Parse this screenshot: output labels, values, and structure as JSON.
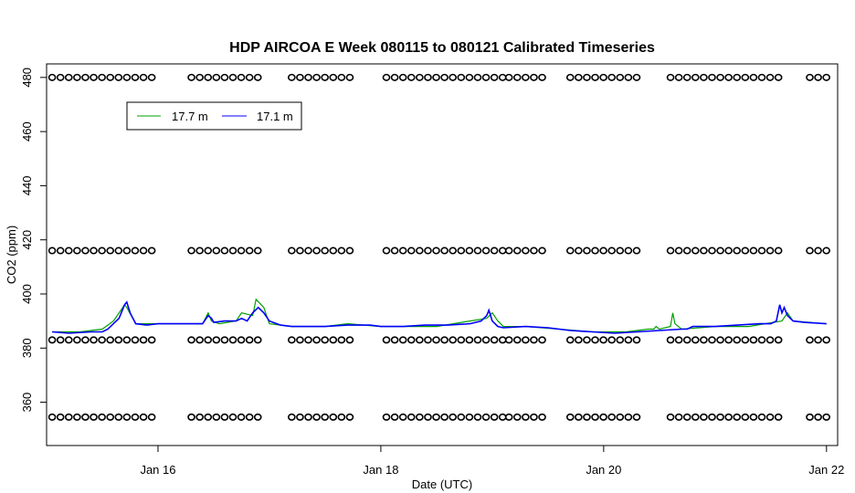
{
  "chart_data": {
    "type": "line",
    "title": "HDP AIRCOA E  Week 080115 to 080121  Calibrated Timeseries",
    "xlabel": "Date (UTC)",
    "ylabel": "CO2 (ppm)",
    "xlim": [
      15.0,
      22.1
    ],
    "ylim": [
      344.0,
      485.0
    ],
    "x_ticks": [
      {
        "value": 16,
        "label": "Jan 16"
      },
      {
        "value": 18,
        "label": "Jan 18"
      },
      {
        "value": 20,
        "label": "Jan 20"
      },
      {
        "value": 22,
        "label": "Jan 22"
      }
    ],
    "y_ticks": [
      360,
      380,
      400,
      420,
      440,
      460,
      480
    ],
    "grid": false,
    "legend": {
      "placement": "top-left",
      "entries": [
        {
          "label": "17.7 m",
          "color": "#00a000"
        },
        {
          "label": "17.1 m",
          "color": "#0000ff"
        }
      ]
    },
    "series": [
      {
        "name": "17.7 m",
        "color": "#00a000",
        "x": [
          15.05,
          15.3,
          15.5,
          15.6,
          15.7,
          15.72,
          15.8,
          16.0,
          16.3,
          16.4,
          16.45,
          16.48,
          16.55,
          16.7,
          16.75,
          16.85,
          16.88,
          16.95,
          17.0,
          17.2,
          17.5,
          17.7,
          18.0,
          18.5,
          18.8,
          18.95,
          19.0,
          19.05,
          19.1,
          19.3,
          19.6,
          19.9,
          20.2,
          20.4,
          20.45,
          20.47,
          20.5,
          20.6,
          20.62,
          20.64,
          20.7,
          21.0,
          21.3,
          21.6,
          21.65,
          21.7,
          22.0
        ],
        "y": [
          386,
          386,
          387,
          390,
          396,
          395,
          389,
          389,
          389,
          389,
          393,
          390,
          389,
          390,
          393,
          392,
          398,
          395,
          389,
          388,
          388,
          389,
          388,
          388,
          390,
          391,
          393,
          390,
          388,
          388,
          387,
          386,
          386,
          387,
          387,
          388,
          387,
          388,
          393,
          389,
          387,
          388,
          388,
          390,
          393,
          390,
          389
        ]
      },
      {
        "name": "17.1 m",
        "color": "#0000ff",
        "x": [
          15.05,
          15.2,
          15.4,
          15.5,
          15.55,
          15.6,
          15.65,
          15.7,
          15.72,
          15.75,
          15.8,
          15.9,
          16.0,
          16.1,
          16.2,
          16.3,
          16.4,
          16.45,
          16.48,
          16.5,
          16.6,
          16.7,
          16.75,
          16.8,
          16.85,
          16.9,
          16.95,
          17.0,
          17.1,
          17.2,
          17.3,
          17.5,
          17.7,
          17.9,
          18.0,
          18.2,
          18.4,
          18.6,
          18.8,
          18.9,
          18.95,
          18.97,
          19.0,
          19.05,
          19.1,
          19.3,
          19.5,
          19.7,
          19.9,
          20.1,
          20.3,
          20.5,
          20.7,
          20.75,
          20.8,
          20.9,
          21.0,
          21.2,
          21.4,
          21.5,
          21.55,
          21.58,
          21.6,
          21.62,
          21.65,
          21.7,
          21.8,
          22.0
        ],
        "y": [
          386,
          385.5,
          386,
          386,
          387,
          389,
          391,
          396,
          397,
          393,
          389,
          388.5,
          389,
          389,
          389,
          389,
          389,
          392,
          391,
          389.5,
          390,
          390,
          391,
          390,
          393,
          395,
          393,
          390,
          388.5,
          388,
          388,
          388,
          388.5,
          388.5,
          388,
          388,
          388.5,
          388.5,
          389,
          390,
          392,
          394,
          390,
          388,
          387.5,
          388,
          387.5,
          386.5,
          386,
          385.5,
          386,
          386.5,
          387,
          387,
          388,
          388,
          388,
          388.5,
          389,
          389,
          390,
          396,
          393,
          395,
          392,
          390,
          389.5,
          389
        ]
      }
    ],
    "point_markers": {
      "marker": "open circle",
      "rows": [
        {
          "y": 480,
          "segments": [
            [
              15.05,
              15.95
            ],
            [
              16.3,
              16.95
            ],
            [
              17.2,
              17.75
            ],
            [
              18.05,
              19.1
            ],
            [
              19.15,
              19.45
            ],
            [
              19.7,
              20.35
            ],
            [
              20.6,
              21.6
            ],
            [
              21.85,
              22.0
            ]
          ]
        },
        {
          "y": 416,
          "segments": [
            [
              15.05,
              15.95
            ],
            [
              16.3,
              16.95
            ],
            [
              17.2,
              17.75
            ],
            [
              18.05,
              19.1
            ],
            [
              19.15,
              19.45
            ],
            [
              19.7,
              20.35
            ],
            [
              20.6,
              21.6
            ],
            [
              21.85,
              22.0
            ]
          ]
        },
        {
          "y": 383,
          "segments": [
            [
              15.05,
              15.95
            ],
            [
              16.3,
              16.95
            ],
            [
              17.2,
              17.75
            ],
            [
              18.05,
              19.1
            ],
            [
              19.15,
              19.45
            ],
            [
              19.7,
              20.35
            ],
            [
              20.6,
              21.6
            ],
            [
              21.85,
              22.0
            ]
          ]
        },
        {
          "y": 354.5,
          "segments": [
            [
              15.05,
              15.95
            ],
            [
              16.3,
              16.95
            ],
            [
              17.2,
              17.75
            ],
            [
              18.05,
              19.1
            ],
            [
              19.15,
              19.45
            ],
            [
              19.7,
              20.35
            ],
            [
              20.6,
              21.6
            ],
            [
              21.85,
              22.0
            ]
          ]
        }
      ]
    }
  }
}
